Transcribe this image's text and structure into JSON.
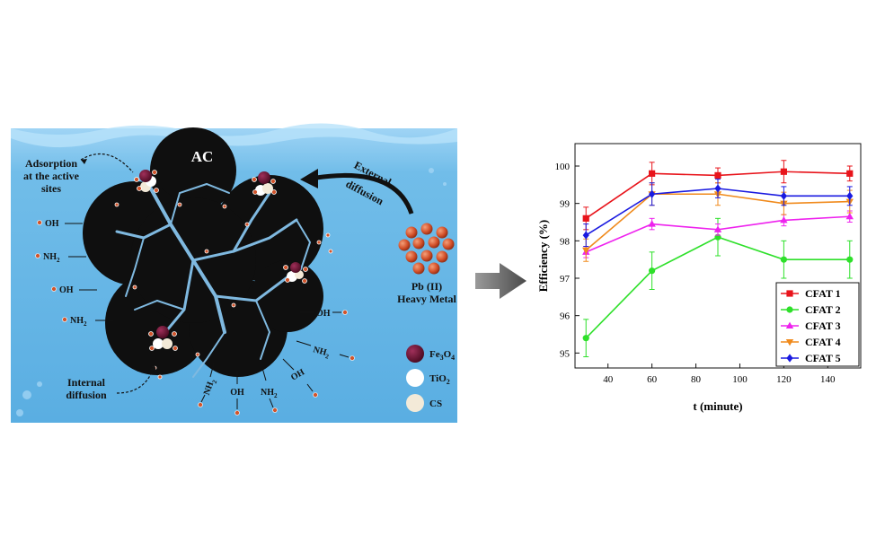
{
  "diagram": {
    "ac_label": "AC",
    "adsorption_label": [
      "Adsorption",
      "at the active",
      "sites"
    ],
    "external_label": [
      "External",
      "diffusion"
    ],
    "internal_label": [
      "Internal",
      "diffusion"
    ],
    "pb_label": [
      "Pb (II)",
      "Heavy Metal"
    ],
    "groups_left": [
      "OH",
      "NH2",
      "OH",
      "NH2"
    ],
    "groups_right": [
      "OH",
      "NH2",
      "OH"
    ],
    "groups_bottom": [
      "NH2",
      "OH",
      "NH2"
    ],
    "legend": [
      {
        "label": "Fe3O4",
        "color": "#6b1030"
      },
      {
        "label": "TiO2",
        "color": "#ffffff"
      },
      {
        "label": "CS",
        "color": "#f3ead8"
      }
    ],
    "colors": {
      "water": "#6cb8e6",
      "carbon": "#0f0f0f",
      "pores": "#7fb9e0",
      "ion": "#d2542b"
    }
  },
  "chart_data": {
    "type": "line",
    "xlabel": "t (minute)",
    "ylabel": "Efficiency (%)",
    "xlim": [
      25,
      155
    ],
    "ylim": [
      94.6,
      100.6
    ],
    "xticks": [
      40,
      60,
      80,
      100,
      120,
      140
    ],
    "yticks": [
      95,
      96,
      97,
      98,
      99,
      100
    ],
    "x": [
      30,
      60,
      90,
      120,
      150
    ],
    "legend_position": "bottom-right",
    "series": [
      {
        "name": "CFAT 1",
        "color": "#e8141b",
        "marker": "square",
        "values": [
          98.6,
          99.8,
          99.75,
          99.85,
          99.8
        ],
        "err": [
          0.3,
          0.3,
          0.2,
          0.3,
          0.2
        ]
      },
      {
        "name": "CFAT 2",
        "color": "#2ee02a",
        "marker": "circle",
        "values": [
          95.4,
          97.2,
          98.1,
          97.5,
          97.5
        ],
        "err": [
          0.5,
          0.5,
          0.5,
          0.5,
          0.5
        ]
      },
      {
        "name": "CFAT 3",
        "color": "#ee22ee",
        "marker": "triangle-up",
        "values": [
          97.7,
          98.45,
          98.3,
          98.55,
          98.65
        ],
        "err": [
          0.15,
          0.15,
          0.15,
          0.15,
          0.15
        ]
      },
      {
        "name": "CFAT 4",
        "color": "#f08a1c",
        "marker": "triangle-down",
        "values": [
          97.75,
          99.25,
          99.25,
          99.0,
          99.05
        ],
        "err": [
          0.3,
          0.3,
          0.3,
          0.3,
          0.3
        ]
      },
      {
        "name": "CFAT 5",
        "color": "#1a1ae0",
        "marker": "diamond",
        "values": [
          98.15,
          99.25,
          99.4,
          99.2,
          99.2
        ],
        "err": [
          0.3,
          0.3,
          0.25,
          0.25,
          0.25
        ]
      }
    ]
  }
}
